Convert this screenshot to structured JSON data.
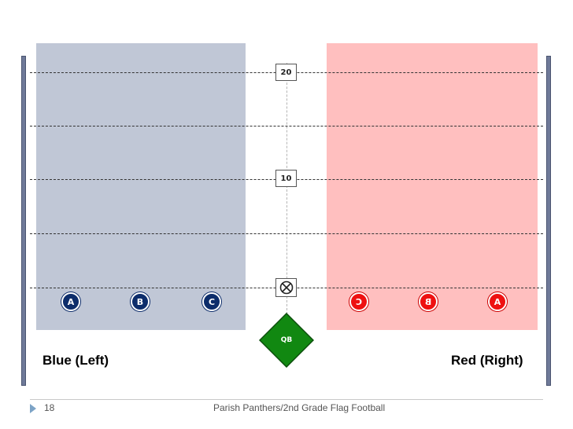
{
  "field": {
    "yard_markers": [
      "20",
      "10"
    ],
    "ball_icon": "circled-x-icon",
    "qb_label": "QB"
  },
  "teams": {
    "blue": {
      "label": "Blue (Left)",
      "color": "#0d2d6b",
      "zone_color": "#c0c7d6",
      "players": [
        "A",
        "B",
        "C"
      ]
    },
    "red": {
      "label": "Red (Right)",
      "color": "#ee1111",
      "zone_color": "#ffbfbf",
      "players": [
        "C",
        "B",
        "A"
      ]
    }
  },
  "footer": {
    "page_number": "18",
    "title": "Parish Panthers/2nd Grade Flag Football"
  }
}
